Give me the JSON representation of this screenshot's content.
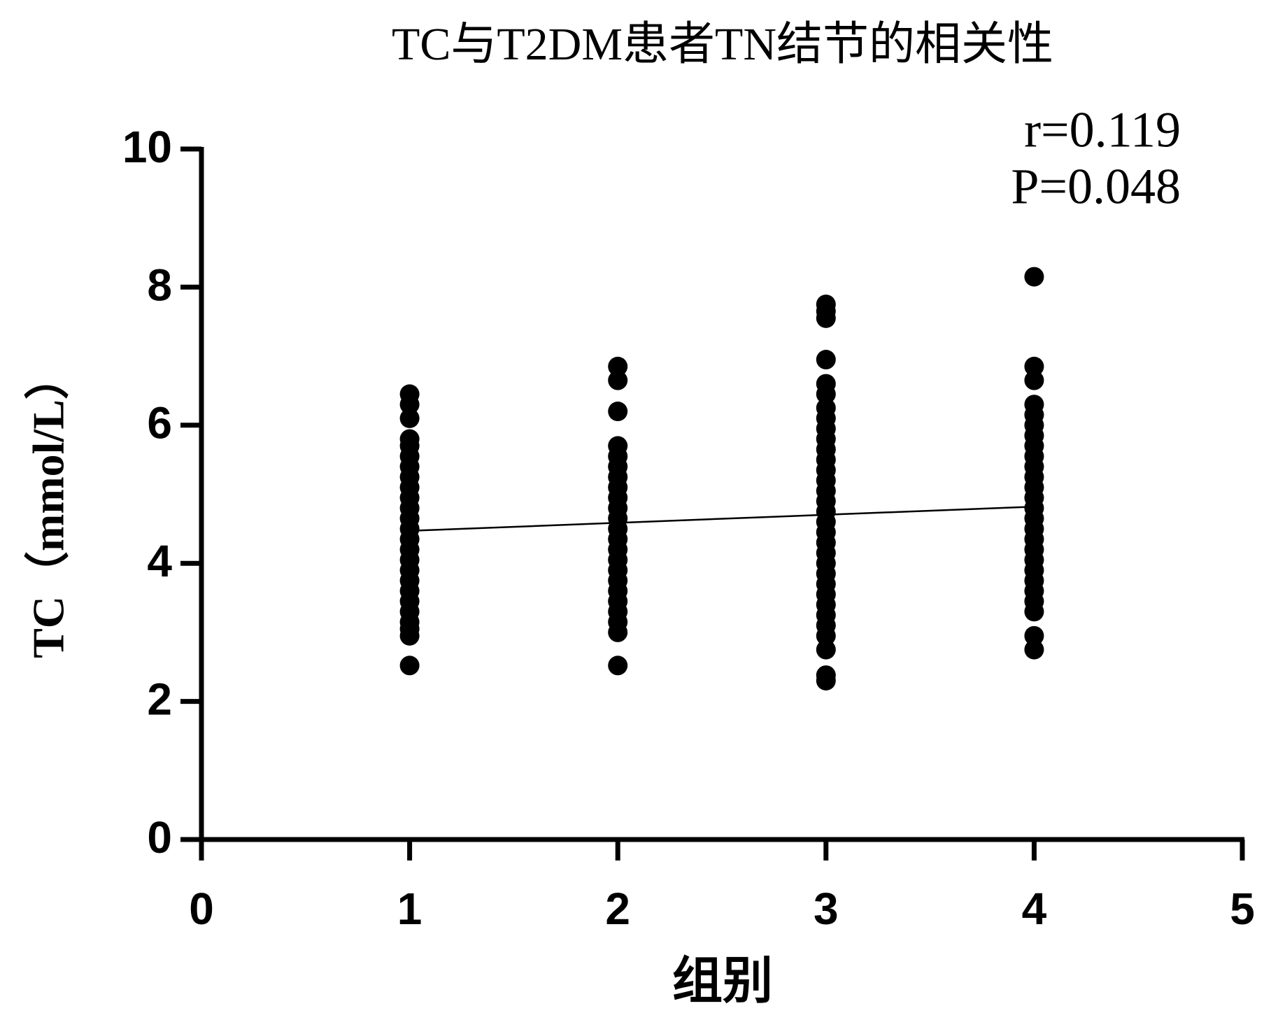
{
  "chart_data": {
    "type": "scatter",
    "title": "TC与T2DM患者TN结节的相关性",
    "x_label": "组别",
    "y_label": "TC（mmol/L）",
    "annotations": [
      "r=0.119",
      "P=0.048"
    ],
    "color": "#000000",
    "x": [
      1,
      1,
      1,
      1,
      1,
      1,
      1,
      1,
      1,
      1,
      1,
      1,
      1,
      1,
      1,
      1,
      1,
      1,
      1,
      1,
      1,
      1,
      1,
      1,
      1,
      2,
      2,
      2,
      2,
      2,
      2,
      2,
      2,
      2,
      2,
      2,
      2,
      2,
      2,
      2,
      2,
      2,
      2,
      2,
      2,
      2,
      2,
      2,
      3,
      3,
      3,
      3,
      3,
      3,
      3,
      3,
      3,
      3,
      3,
      3,
      3,
      3,
      3,
      3,
      3,
      3,
      3,
      3,
      3,
      3,
      3,
      3,
      3,
      3,
      3,
      3,
      3,
      3,
      3,
      3,
      4,
      4,
      4,
      4,
      4,
      4,
      4,
      4,
      4,
      4,
      4,
      4,
      4,
      4,
      4,
      4,
      4,
      4,
      4,
      4,
      4,
      4,
      4,
      4,
      4,
      4
    ],
    "values": [
      2.52,
      2.95,
      3.05,
      3.15,
      3.3,
      3.45,
      3.6,
      3.75,
      3.9,
      4.05,
      4.2,
      4.35,
      4.5,
      4.65,
      4.8,
      4.95,
      5.1,
      5.25,
      5.4,
      5.55,
      5.7,
      5.8,
      6.1,
      6.3,
      6.45,
      2.52,
      3.0,
      3.15,
      3.3,
      3.45,
      3.6,
      3.75,
      3.9,
      4.05,
      4.2,
      4.35,
      4.5,
      4.65,
      4.8,
      4.95,
      5.1,
      5.25,
      5.4,
      5.55,
      5.7,
      6.2,
      6.65,
      6.85,
      2.3,
      2.38,
      2.75,
      2.95,
      3.1,
      3.25,
      3.4,
      3.55,
      3.7,
      3.85,
      4.0,
      4.15,
      4.3,
      4.45,
      4.6,
      4.75,
      4.9,
      5.05,
      5.2,
      5.35,
      5.5,
      5.65,
      5.8,
      5.95,
      6.1,
      6.25,
      6.45,
      6.6,
      6.95,
      7.55,
      7.65,
      7.75,
      2.75,
      2.95,
      3.3,
      3.45,
      3.6,
      3.75,
      3.9,
      4.05,
      4.2,
      4.35,
      4.5,
      4.65,
      4.8,
      4.95,
      5.1,
      5.25,
      5.4,
      5.55,
      5.7,
      5.85,
      6.0,
      6.15,
      6.3,
      6.65,
      6.85,
      8.15
    ],
    "trendline": {
      "x": [
        1,
        4
      ],
      "values": [
        4.47,
        4.82
      ]
    },
    "xlim": [
      0,
      5
    ],
    "xticks": [
      0,
      1,
      2,
      3,
      4,
      5
    ],
    "ylim": [
      0,
      10
    ],
    "yticks": [
      0,
      2,
      4,
      6,
      8,
      10
    ]
  }
}
